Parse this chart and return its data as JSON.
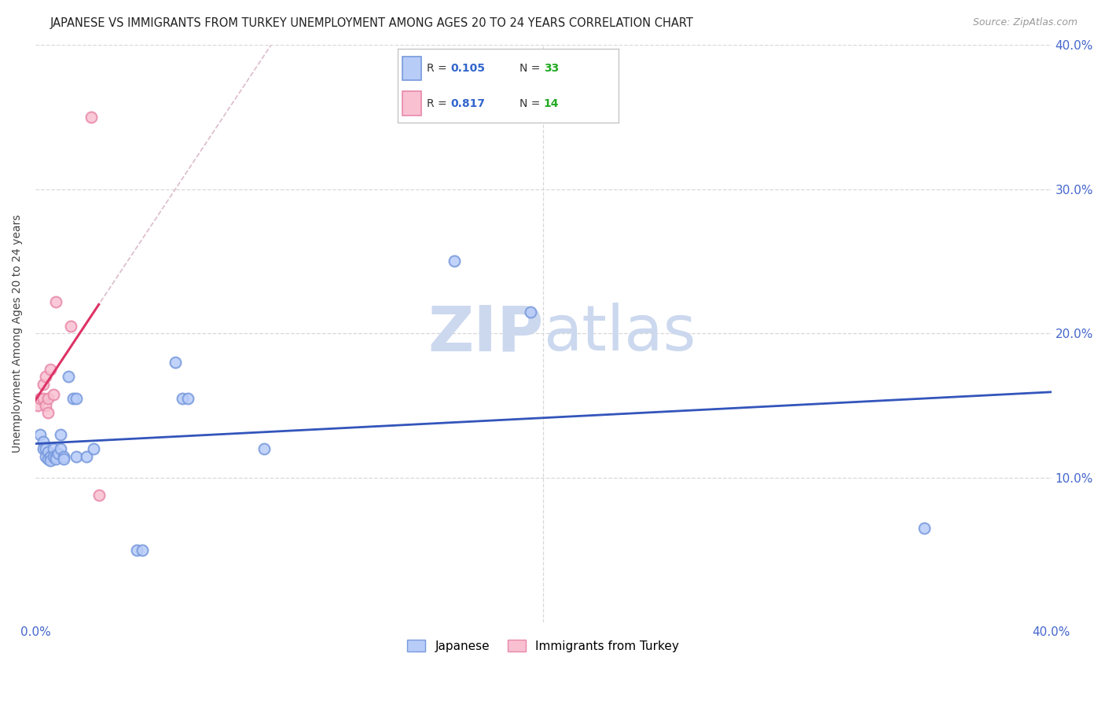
{
  "title": "JAPANESE VS IMMIGRANTS FROM TURKEY UNEMPLOYMENT AMONG AGES 20 TO 24 YEARS CORRELATION CHART",
  "source": "Source: ZipAtlas.com",
  "ylabel": "Unemployment Among Ages 20 to 24 years",
  "xlim": [
    0.0,
    0.4
  ],
  "ylim": [
    0.0,
    0.4
  ],
  "background_color": "#ffffff",
  "grid_color": "#d8d8d8",
  "japanese_x": [
    0.002,
    0.003,
    0.003,
    0.004,
    0.004,
    0.005,
    0.005,
    0.006,
    0.006,
    0.007,
    0.007,
    0.008,
    0.008,
    0.009,
    0.01,
    0.01,
    0.011,
    0.011,
    0.013,
    0.015,
    0.016,
    0.016,
    0.02,
    0.023,
    0.04,
    0.042,
    0.055,
    0.058,
    0.06,
    0.09,
    0.165,
    0.195,
    0.35
  ],
  "japanese_y": [
    0.13,
    0.125,
    0.12,
    0.12,
    0.115,
    0.118,
    0.113,
    0.115,
    0.112,
    0.12,
    0.115,
    0.115,
    0.113,
    0.117,
    0.13,
    0.12,
    0.115,
    0.113,
    0.17,
    0.155,
    0.155,
    0.115,
    0.115,
    0.12,
    0.05,
    0.05,
    0.18,
    0.155,
    0.155,
    0.12,
    0.25,
    0.215,
    0.065
  ],
  "turkey_x": [
    0.001,
    0.002,
    0.003,
    0.003,
    0.004,
    0.004,
    0.005,
    0.005,
    0.006,
    0.007,
    0.008,
    0.014,
    0.022,
    0.025
  ],
  "turkey_y": [
    0.15,
    0.155,
    0.155,
    0.165,
    0.15,
    0.17,
    0.145,
    0.155,
    0.175,
    0.158,
    0.222,
    0.205,
    0.35,
    0.088
  ],
  "r_japanese": 0.105,
  "n_japanese": 33,
  "r_turkey": 0.817,
  "n_turkey": 14,
  "japan_fill_color": "#b8ccf8",
  "japan_edge_color": "#7799dd",
  "turkey_fill_color": "#f8c0d0",
  "turkey_edge_color": "#e888aa",
  "trend_japanese_color": "#3355bb",
  "trend_turkey_solid_color": "#dd3366",
  "trend_turkey_dashed_color": "#ddbbcc",
  "legend_japanese_label": "Japanese",
  "legend_turkey_label": "Immigrants from Turkey",
  "legend_r_color": "#3366cc",
  "legend_n_color": "#22aa22",
  "watermark_zip": "ZIP",
  "watermark_atlas": "atlas",
  "watermark_color": "#ccd8ee",
  "watermark_fontsize": 58
}
